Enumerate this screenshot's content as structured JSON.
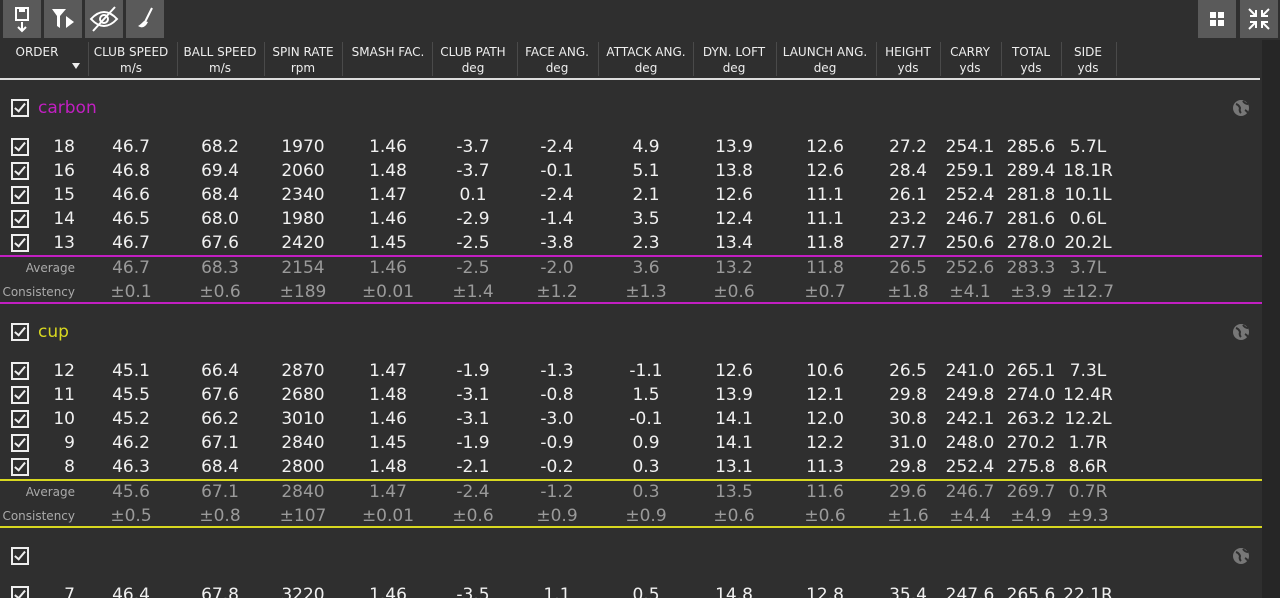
{
  "columns": [
    {
      "name": "ORDER"
    },
    {
      "name": "CLUB SPEED",
      "unit": "m/s"
    },
    {
      "name": "BALL SPEED",
      "unit": "m/s"
    },
    {
      "name": "SPIN RATE",
      "unit": "rpm"
    },
    {
      "name": "SMASH FAC."
    },
    {
      "name": "CLUB PATH",
      "unit": "deg"
    },
    {
      "name": "FACE ANG.",
      "unit": "deg"
    },
    {
      "name": "ATTACK ANG.",
      "unit": "deg"
    },
    {
      "name": "DYN. LOFT",
      "unit": "deg"
    },
    {
      "name": "LAUNCH ANG.",
      "unit": "deg"
    },
    {
      "name": "HEIGHT",
      "unit": "yds"
    },
    {
      "name": "CARRY",
      "unit": "yds"
    },
    {
      "name": "TOTAL",
      "unit": "yds"
    },
    {
      "name": "SIDE",
      "unit": "yds"
    }
  ],
  "labels": {
    "average": "Average",
    "consistency": "Consistency"
  },
  "groups": [
    {
      "name": "carbon",
      "color": "#c21fc2",
      "rows": [
        [
          "18",
          "46.7",
          "68.2",
          "1970",
          "1.46",
          "-3.7",
          "-2.4",
          "4.9",
          "13.9",
          "12.6",
          "27.2",
          "254.1",
          "285.6",
          "5.7L"
        ],
        [
          "16",
          "46.8",
          "69.4",
          "2060",
          "1.48",
          "-3.7",
          "-0.1",
          "5.1",
          "13.8",
          "12.6",
          "28.4",
          "259.1",
          "289.4",
          "18.1R"
        ],
        [
          "15",
          "46.6",
          "68.4",
          "2340",
          "1.47",
          "0.1",
          "-2.4",
          "2.1",
          "12.6",
          "11.1",
          "26.1",
          "252.4",
          "281.8",
          "10.1L"
        ],
        [
          "14",
          "46.5",
          "68.0",
          "1980",
          "1.46",
          "-2.9",
          "-1.4",
          "3.5",
          "12.4",
          "11.1",
          "23.2",
          "246.7",
          "281.6",
          "0.6L"
        ],
        [
          "13",
          "46.7",
          "67.6",
          "2420",
          "1.45",
          "-2.5",
          "-3.8",
          "2.3",
          "13.4",
          "11.8",
          "27.7",
          "250.6",
          "278.0",
          "20.2L"
        ]
      ],
      "average": [
        "46.7",
        "68.3",
        "2154",
        "1.46",
        "-2.5",
        "-2.0",
        "3.6",
        "13.2",
        "11.8",
        "26.5",
        "252.6",
        "283.3",
        "3.7L"
      ],
      "consistency": [
        "±0.1",
        "±0.6",
        "±189",
        "±0.01",
        "±1.4",
        "±1.2",
        "±1.3",
        "±0.6",
        "±0.7",
        "±1.8",
        "±4.1",
        "±3.9",
        "±12.7"
      ]
    },
    {
      "name": "cup",
      "color": "#d8d820",
      "rows": [
        [
          "12",
          "45.1",
          "66.4",
          "2870",
          "1.47",
          "-1.9",
          "-1.3",
          "-1.1",
          "12.6",
          "10.6",
          "26.5",
          "241.0",
          "265.1",
          "7.3L"
        ],
        [
          "11",
          "45.5",
          "67.6",
          "2680",
          "1.48",
          "-3.1",
          "-0.8",
          "1.5",
          "13.9",
          "12.1",
          "29.8",
          "249.8",
          "274.0",
          "12.4R"
        ],
        [
          "10",
          "45.2",
          "66.2",
          "3010",
          "1.46",
          "-3.1",
          "-3.0",
          "-0.1",
          "14.1",
          "12.0",
          "30.8",
          "242.1",
          "263.2",
          "12.2L"
        ],
        [
          "9",
          "46.2",
          "67.1",
          "2840",
          "1.45",
          "-1.9",
          "-0.9",
          "0.9",
          "14.1",
          "12.2",
          "31.0",
          "248.0",
          "270.2",
          "1.7R"
        ],
        [
          "8",
          "46.3",
          "68.4",
          "2800",
          "1.48",
          "-2.1",
          "-0.2",
          "0.3",
          "13.1",
          "11.3",
          "29.8",
          "252.4",
          "275.8",
          "8.6R"
        ]
      ],
      "average": [
        "45.6",
        "67.1",
        "2840",
        "1.47",
        "-2.4",
        "-1.2",
        "0.3",
        "13.5",
        "11.6",
        "29.6",
        "246.7",
        "269.7",
        "0.7R"
      ],
      "consistency": [
        "±0.5",
        "±0.8",
        "±107",
        "±0.01",
        "±0.6",
        "±0.9",
        "±0.9",
        "±0.6",
        "±0.6",
        "±1.6",
        "±4.4",
        "±4.9",
        "±9.3"
      ]
    },
    {
      "rows": [
        [
          "7",
          "46.4",
          "67.8",
          "3220",
          "1.46",
          "-3.5",
          "1.1",
          "0.5",
          "14.8",
          "12.8",
          "35.4",
          "247.6",
          "265.6",
          "22.1R"
        ]
      ]
    }
  ]
}
